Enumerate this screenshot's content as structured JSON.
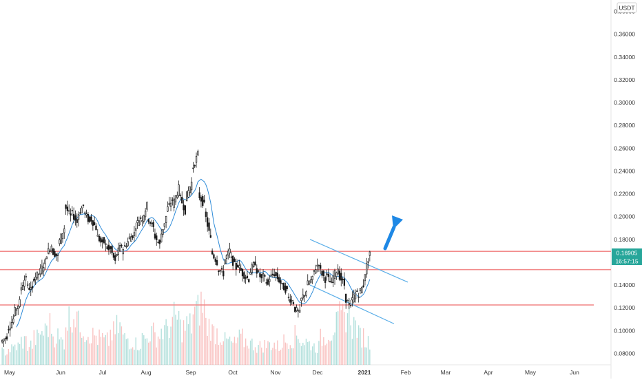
{
  "chart_data": {
    "type": "candlestick",
    "quote_currency": "USDT",
    "y_ticks": [
      "0.38000",
      "0.36000",
      "0.34000",
      "0.32000",
      "0.30000",
      "0.28000",
      "0.26000",
      "0.24000",
      "0.22000",
      "0.20000",
      "0.18000",
      "0.16000",
      "0.14000",
      "0.12000",
      "0.10000",
      "0.08000"
    ],
    "y_range": [
      0.07,
      0.39
    ],
    "x_labels": [
      "May",
      "Jun",
      "Jul",
      "Aug",
      "Sep",
      "Oct",
      "Nov",
      "Dec",
      "2021",
      "Feb",
      "Mar",
      "Apr",
      "May",
      "Jun"
    ],
    "last_price": "0.16905",
    "countdown": "16:57:15",
    "colors": {
      "up": "#26a69a",
      "down": "#ef5350",
      "candle_body": "#1a1a1a",
      "ma": "#2e8bd8",
      "channel": "#5aaee8",
      "level": "#f28b8b",
      "arrow": "#1e88e5",
      "price_badge": "#26a69a"
    },
    "horizontal_levels": [
      0.1695,
      0.1535,
      0.1225
    ],
    "channel_upper": [
      [
        0.18,
        0.1425
      ]
    ],
    "channel_lower": [
      [
        0.14,
        0.106
      ]
    ],
    "price_path": [
      [
        0.09,
        0.095
      ],
      [
        0.1,
        0.11
      ],
      [
        0.115,
        0.125
      ],
      [
        0.135,
        0.148
      ],
      [
        0.14,
        0.135
      ],
      [
        0.145,
        0.15
      ],
      [
        0.15,
        0.16
      ],
      [
        0.165,
        0.175
      ],
      [
        0.17,
        0.165
      ],
      [
        0.175,
        0.19
      ],
      [
        0.21,
        0.2
      ],
      [
        0.205,
        0.195
      ],
      [
        0.2,
        0.21
      ],
      [
        0.205,
        0.195
      ],
      [
        0.2,
        0.19
      ],
      [
        0.185,
        0.175
      ],
      [
        0.18,
        0.17
      ],
      [
        0.175,
        0.16
      ],
      [
        0.165,
        0.175
      ],
      [
        0.17,
        0.178
      ],
      [
        0.18,
        0.185
      ],
      [
        0.19,
        0.2
      ],
      [
        0.195,
        0.21
      ],
      [
        0.2,
        0.19
      ],
      [
        0.185,
        0.175
      ],
      [
        0.18,
        0.2
      ],
      [
        0.205,
        0.215
      ],
      [
        0.21,
        0.225
      ],
      [
        0.22,
        0.205
      ],
      [
        0.215,
        0.23
      ],
      [
        0.24,
        0.255
      ],
      [
        0.22,
        0.21
      ],
      [
        0.205,
        0.18
      ],
      [
        0.17,
        0.16
      ],
      [
        0.155,
        0.15
      ],
      [
        0.16,
        0.17
      ],
      [
        0.165,
        0.155
      ],
      [
        0.16,
        0.15
      ],
      [
        0.15,
        0.145
      ],
      [
        0.15,
        0.16
      ],
      [
        0.155,
        0.145
      ],
      [
        0.15,
        0.14
      ],
      [
        0.145,
        0.15
      ],
      [
        0.15,
        0.142
      ],
      [
        0.14,
        0.135
      ],
      [
        0.13,
        0.125
      ],
      [
        0.12,
        0.115
      ],
      [
        0.125,
        0.135
      ],
      [
        0.14,
        0.145
      ],
      [
        0.15,
        0.16
      ],
      [
        0.155,
        0.145
      ],
      [
        0.15,
        0.14
      ],
      [
        0.145,
        0.155
      ],
      [
        0.15,
        0.14
      ],
      [
        0.13,
        0.12
      ],
      [
        0.125,
        0.135
      ],
      [
        0.13,
        0.14
      ],
      [
        0.145,
        0.169
      ]
    ],
    "volume": [
      10,
      12,
      14,
      18,
      15,
      20,
      25,
      30,
      22,
      18,
      35,
      40,
      30,
      25,
      22,
      20,
      18,
      24,
      28,
      20,
      18,
      16,
      20,
      24,
      22,
      26,
      30,
      35,
      28,
      30,
      40,
      45,
      30,
      25,
      22,
      18,
      16,
      20,
      18,
      16,
      14,
      15,
      16,
      14,
      18,
      20,
      22,
      18,
      16,
      14,
      20,
      25,
      30,
      35,
      40,
      30,
      22,
      18
    ]
  }
}
